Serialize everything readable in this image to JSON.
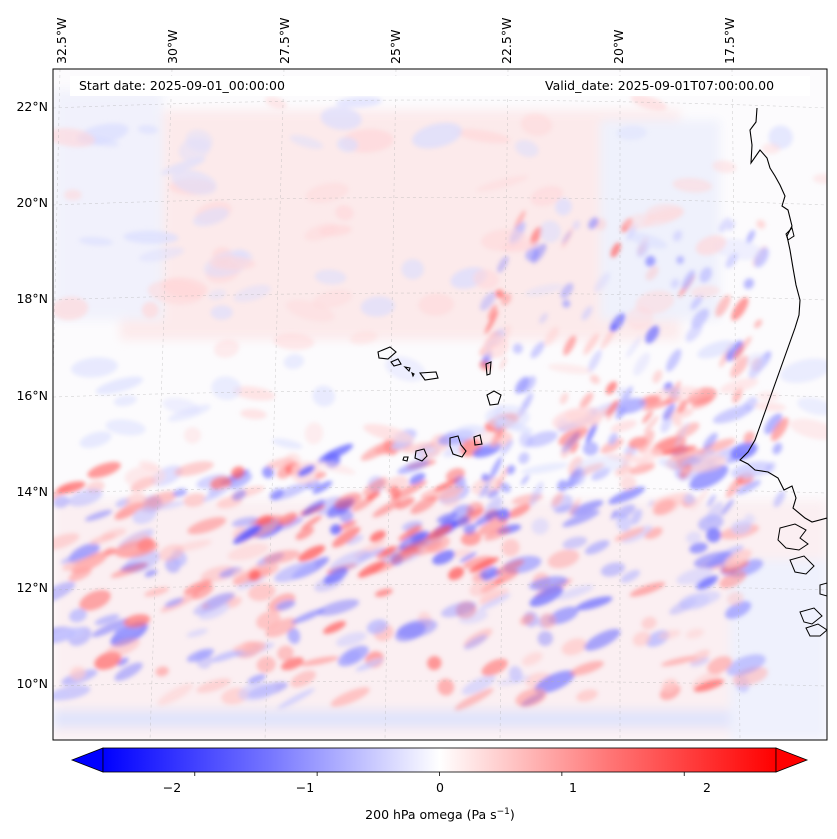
{
  "map": {
    "start_date_label": "Start date: 2025-09-01_00:00:00",
    "valid_date_label": "Valid_date: 2025-09-01T07:00:00.00",
    "lon_labels": [
      "32.5°W",
      "30°W",
      "27.5°W",
      "25°W",
      "22.5°W",
      "20°W",
      "17.5°W"
    ],
    "lat_labels": [
      "22°N",
      "20°N",
      "18°N",
      "16°N",
      "14°N",
      "12°N",
      "10°N"
    ],
    "variable": "200 hPa omega",
    "units_base": "Pa s",
    "units_exp": "−1"
  },
  "colorbar": {
    "ticks": [
      "−2",
      "−1",
      "0",
      "1",
      "2"
    ],
    "min": -2.75,
    "max": 2.75,
    "neg_color": "#0000ff",
    "pos_color": "#ff0000",
    "mid_color": "#ffffff"
  },
  "colors": {
    "coastline": "#000000",
    "grid": "#b0b0b0"
  }
}
